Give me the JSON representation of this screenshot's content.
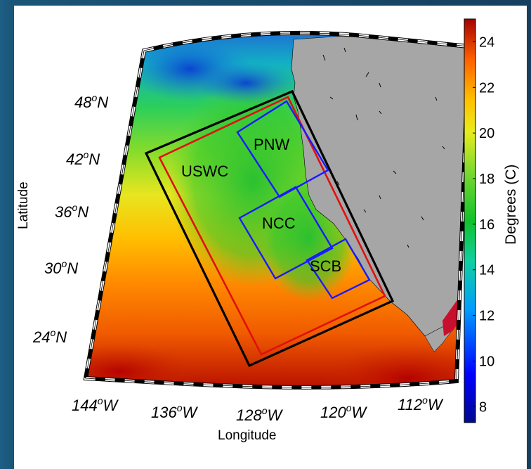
{
  "map": {
    "latitude_labels": [
      {
        "deg": "48",
        "suffix": "N"
      },
      {
        "deg": "42",
        "suffix": "N"
      },
      {
        "deg": "36",
        "suffix": "N"
      },
      {
        "deg": "30",
        "suffix": "N"
      },
      {
        "deg": "24",
        "suffix": "N"
      }
    ],
    "longitude_labels": [
      {
        "deg": "144",
        "suffix": "W"
      },
      {
        "deg": "136",
        "suffix": "W"
      },
      {
        "deg": "128",
        "suffix": "W"
      },
      {
        "deg": "120",
        "suffix": "W"
      },
      {
        "deg": "112",
        "suffix": "W"
      }
    ],
    "axis_x_label": "Longitude",
    "axis_y_label": "Latitude",
    "regions": [
      {
        "name": "USWC",
        "color": "#000000"
      },
      {
        "name": "USWC inner",
        "color": "#e01010"
      },
      {
        "name": "PNW",
        "color": "#1a1aff"
      },
      {
        "name": "NCC",
        "color": "#1a1aff"
      },
      {
        "name": "SCB",
        "color": "#1a1aff"
      }
    ],
    "region_labels": [
      "USWC",
      "PNW",
      "NCC",
      "SCB"
    ]
  },
  "colorbar": {
    "label": "Degrees (C)",
    "ticks": [
      "24",
      "22",
      "20",
      "18",
      "16",
      "14",
      "12",
      "10",
      "8"
    ],
    "range": [
      7.3,
      25
    ]
  }
}
